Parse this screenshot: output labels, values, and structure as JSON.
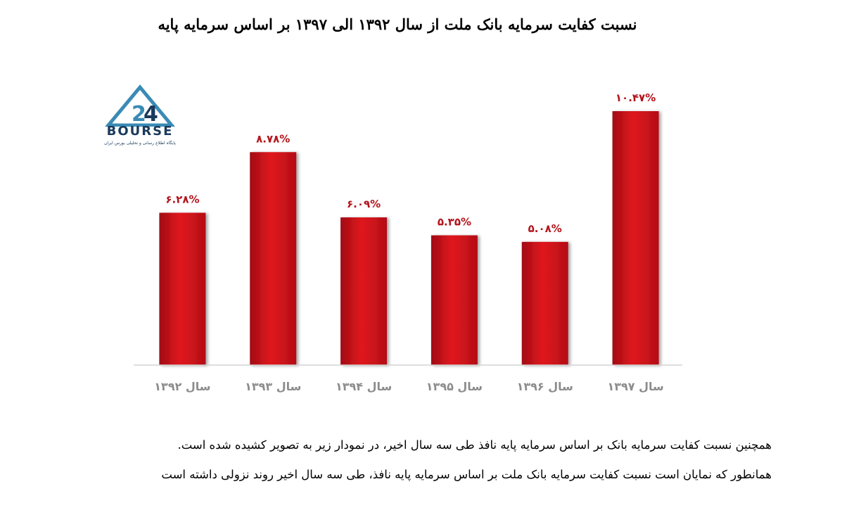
{
  "chart_data": {
    "type": "bar",
    "title": "نسبت کفایت سرمایه بانک ملت از سال ۱۳۹۲ الی ۱۳۹۷ بر اساس سرمایه پایه",
    "categories": [
      "سال ۱۳۹۲",
      "سال ۱۳۹۳",
      "سال ۱۳۹۴",
      "سال ۱۳۹۵",
      "سال ۱۳۹۶",
      "سال ۱۳۹۷"
    ],
    "values": [
      6.28,
      8.78,
      6.09,
      5.35,
      5.08,
      10.47
    ],
    "data_labels": [
      "۶.۲۸%",
      "۸.۷۸%",
      "۶.۰۹%",
      "۵.۳۵%",
      "۵.۰۸%",
      "۱۰.۴۷%"
    ],
    "xlabel": "",
    "ylabel": "",
    "ylim": [
      0,
      10.47
    ],
    "grid": false,
    "legend": "none",
    "bar_color": "#d0141c"
  },
  "logo": {
    "brand": "BOURSE",
    "subtitle": "پایگاه اطلاع رسانی و تحلیلی بورس ایران"
  },
  "text": {
    "paragraph_1": "همچنین نسبت کفایت سرمایه بانک بر اساس سرمایه پایه نافذ طی سه سال اخیر، در نمودار زیر به تصویر کشیده شده است.",
    "paragraph_2": "همانطور که نمایان است نسبت کفایت سرمایه بانک ملت بر اساس سرمایه پایه نافذ، طی سه سال اخیر روند نزولی داشته است"
  }
}
